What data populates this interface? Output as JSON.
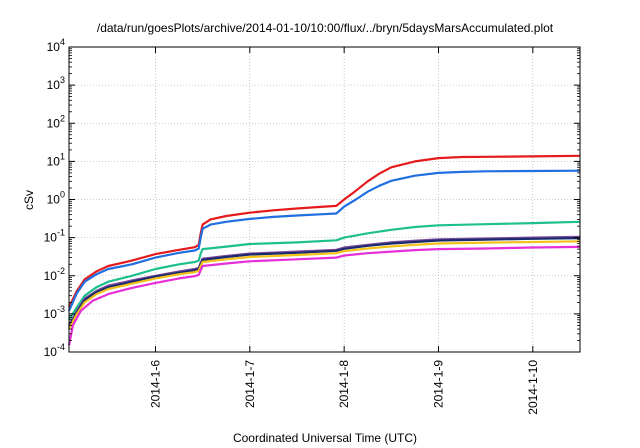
{
  "chart_data": {
    "type": "line",
    "title": "/data/run/goesPlots/archive/2014-01-10/10:00/flux/../bryn/5daysMarsAccumulated.plot",
    "xlabel": "Coordinated Universal Time (UTC)",
    "ylabel": "cSv",
    "x_scale": "time",
    "y_scale": "log",
    "xlim": [
      "2014-01-05T02:00",
      "2014-01-10T12:00"
    ],
    "ylim": [
      0.0001,
      10000
    ],
    "grid": true,
    "x_ticks": [
      {
        "value": "2014-01-06T00:00",
        "label": "2014-1-6"
      },
      {
        "value": "2014-01-07T00:00",
        "label": "2014-1-7"
      },
      {
        "value": "2014-01-08T00:00",
        "label": "2014-1-8"
      },
      {
        "value": "2014-01-09T00:00",
        "label": "2014-1-9"
      },
      {
        "value": "2014-01-10T00:00",
        "label": "2014-1-10"
      }
    ],
    "y_ticks": [
      {
        "value": 0.0001,
        "base": "10",
        "exp": "-4"
      },
      {
        "value": 0.001,
        "base": "10",
        "exp": "-3"
      },
      {
        "value": 0.01,
        "base": "10",
        "exp": "-2"
      },
      {
        "value": 0.1,
        "base": "10",
        "exp": "-1"
      },
      {
        "value": 1,
        "base": "10",
        "exp": "0"
      },
      {
        "value": 10,
        "base": "10",
        "exp": "1"
      },
      {
        "value": 100,
        "base": "10",
        "exp": "2"
      },
      {
        "value": 1000,
        "base": "10",
        "exp": "3"
      },
      {
        "value": 10000,
        "base": "10",
        "exp": "4"
      }
    ],
    "series": [
      {
        "color": "#e41a1c",
        "points": [
          [
            "2014-01-05T02:00",
            0.0015
          ],
          [
            "2014-01-05T04:00",
            0.004
          ],
          [
            "2014-01-05T06:00",
            0.008
          ],
          [
            "2014-01-05T09:00",
            0.013
          ],
          [
            "2014-01-05T12:00",
            0.018
          ],
          [
            "2014-01-05T18:00",
            0.025
          ],
          [
            "2014-01-06T00:00",
            0.037
          ],
          [
            "2014-01-06T06:00",
            0.048
          ],
          [
            "2014-01-06T10:00",
            0.056
          ],
          [
            "2014-01-06T11:00",
            0.065
          ],
          [
            "2014-01-06T11:30",
            0.13
          ],
          [
            "2014-01-06T12:00",
            0.22
          ],
          [
            "2014-01-06T14:00",
            0.3
          ],
          [
            "2014-01-06T18:00",
            0.37
          ],
          [
            "2014-01-07T00:00",
            0.45
          ],
          [
            "2014-01-07T06:00",
            0.52
          ],
          [
            "2014-01-07T12:00",
            0.58
          ],
          [
            "2014-01-07T18:00",
            0.64
          ],
          [
            "2014-01-07T22:00",
            0.68
          ],
          [
            "2014-01-08T00:00",
            1.0
          ],
          [
            "2014-01-08T03:00",
            1.7
          ],
          [
            "2014-01-08T06:00",
            3.0
          ],
          [
            "2014-01-08T09:00",
            4.8
          ],
          [
            "2014-01-08T12:00",
            7.0
          ],
          [
            "2014-01-08T18:00",
            10.0
          ],
          [
            "2014-01-09T00:00",
            12.2
          ],
          [
            "2014-01-09T06:00",
            13.0
          ],
          [
            "2014-01-09T12:00",
            13.2
          ],
          [
            "2014-01-10T00:00",
            13.5
          ],
          [
            "2014-01-10T12:00",
            14.0
          ]
        ]
      },
      {
        "color": "#1f6fe0",
        "points": [
          [
            "2014-01-05T02:00",
            0.0012
          ],
          [
            "2014-01-05T04:00",
            0.0035
          ],
          [
            "2014-01-05T06:00",
            0.007
          ],
          [
            "2014-01-05T09:00",
            0.011
          ],
          [
            "2014-01-05T12:00",
            0.015
          ],
          [
            "2014-01-05T18:00",
            0.02
          ],
          [
            "2014-01-06T00:00",
            0.03
          ],
          [
            "2014-01-06T06:00",
            0.04
          ],
          [
            "2014-01-06T10:00",
            0.046
          ],
          [
            "2014-01-06T11:00",
            0.052
          ],
          [
            "2014-01-06T11:30",
            0.1
          ],
          [
            "2014-01-06T12:00",
            0.17
          ],
          [
            "2014-01-06T14:00",
            0.22
          ],
          [
            "2014-01-06T18:00",
            0.26
          ],
          [
            "2014-01-07T00:00",
            0.31
          ],
          [
            "2014-01-07T06:00",
            0.35
          ],
          [
            "2014-01-07T12:00",
            0.38
          ],
          [
            "2014-01-07T18:00",
            0.41
          ],
          [
            "2014-01-07T22:00",
            0.43
          ],
          [
            "2014-01-08T00:00",
            0.65
          ],
          [
            "2014-01-08T03:00",
            1.0
          ],
          [
            "2014-01-08T06:00",
            1.6
          ],
          [
            "2014-01-08T09:00",
            2.3
          ],
          [
            "2014-01-08T12:00",
            3.1
          ],
          [
            "2014-01-08T18:00",
            4.2
          ],
          [
            "2014-01-09T00:00",
            5.0
          ],
          [
            "2014-01-09T06:00",
            5.3
          ],
          [
            "2014-01-09T12:00",
            5.5
          ],
          [
            "2014-01-10T00:00",
            5.6
          ],
          [
            "2014-01-10T12:00",
            5.7
          ]
        ]
      },
      {
        "color": "#1dbf8e",
        "points": [
          [
            "2014-01-05T02:00",
            0.0007
          ],
          [
            "2014-01-05T04:00",
            0.0015
          ],
          [
            "2014-01-05T06:00",
            0.003
          ],
          [
            "2014-01-05T09:00",
            0.005
          ],
          [
            "2014-01-05T12:00",
            0.007
          ],
          [
            "2014-01-05T18:00",
            0.01
          ],
          [
            "2014-01-06T00:00",
            0.015
          ],
          [
            "2014-01-06T06:00",
            0.02
          ],
          [
            "2014-01-06T10:00",
            0.023
          ],
          [
            "2014-01-06T11:00",
            0.025
          ],
          [
            "2014-01-06T11:30",
            0.038
          ],
          [
            "2014-01-06T12:00",
            0.05
          ],
          [
            "2014-01-06T18:00",
            0.058
          ],
          [
            "2014-01-07T00:00",
            0.068
          ],
          [
            "2014-01-07T12:00",
            0.075
          ],
          [
            "2014-01-07T22:00",
            0.085
          ],
          [
            "2014-01-08T00:00",
            0.1
          ],
          [
            "2014-01-08T06:00",
            0.13
          ],
          [
            "2014-01-08T12:00",
            0.16
          ],
          [
            "2014-01-08T18:00",
            0.19
          ],
          [
            "2014-01-09T00:00",
            0.21
          ],
          [
            "2014-01-09T12:00",
            0.225
          ],
          [
            "2014-01-10T00:00",
            0.24
          ],
          [
            "2014-01-10T12:00",
            0.26
          ]
        ]
      },
      {
        "color": "#7b4a9c",
        "points": [
          [
            "2014-01-05T02:00",
            0.0005
          ],
          [
            "2014-01-05T04:00",
            0.0012
          ],
          [
            "2014-01-05T06:00",
            0.0025
          ],
          [
            "2014-01-05T09:00",
            0.004
          ],
          [
            "2014-01-05T12:00",
            0.0055
          ],
          [
            "2014-01-05T18:00",
            0.0075
          ],
          [
            "2014-01-06T00:00",
            0.01
          ],
          [
            "2014-01-06T06:00",
            0.013
          ],
          [
            "2014-01-06T10:00",
            0.015
          ],
          [
            "2014-01-06T11:00",
            0.016
          ],
          [
            "2014-01-06T11:30",
            0.022
          ],
          [
            "2014-01-06T12:00",
            0.028
          ],
          [
            "2014-01-06T18:00",
            0.033
          ],
          [
            "2014-01-07T00:00",
            0.038
          ],
          [
            "2014-01-07T12:00",
            0.043
          ],
          [
            "2014-01-07T22:00",
            0.048
          ],
          [
            "2014-01-08T00:00",
            0.055
          ],
          [
            "2014-01-08T06:00",
            0.065
          ],
          [
            "2014-01-08T12:00",
            0.075
          ],
          [
            "2014-01-08T18:00",
            0.083
          ],
          [
            "2014-01-09T00:00",
            0.09
          ],
          [
            "2014-01-09T12:00",
            0.095
          ],
          [
            "2014-01-10T00:00",
            0.1
          ],
          [
            "2014-01-10T12:00",
            0.105
          ]
        ]
      },
      {
        "color": "#1a2a6e",
        "points": [
          [
            "2014-01-05T02:00",
            0.00045
          ],
          [
            "2014-01-05T04:00",
            0.0011
          ],
          [
            "2014-01-05T06:00",
            0.0023
          ],
          [
            "2014-01-05T09:00",
            0.0037
          ],
          [
            "2014-01-05T12:00",
            0.005
          ],
          [
            "2014-01-05T18:00",
            0.007
          ],
          [
            "2014-01-06T00:00",
            0.0095
          ],
          [
            "2014-01-06T06:00",
            0.012
          ],
          [
            "2014-01-06T10:00",
            0.014
          ],
          [
            "2014-01-06T11:00",
            0.015
          ],
          [
            "2014-01-06T11:30",
            0.02
          ],
          [
            "2014-01-06T12:00",
            0.026
          ],
          [
            "2014-01-06T18:00",
            0.031
          ],
          [
            "2014-01-07T00:00",
            0.036
          ],
          [
            "2014-01-07T12:00",
            0.04
          ],
          [
            "2014-01-07T22:00",
            0.045
          ],
          [
            "2014-01-08T00:00",
            0.051
          ],
          [
            "2014-01-08T06:00",
            0.061
          ],
          [
            "2014-01-08T12:00",
            0.07
          ],
          [
            "2014-01-08T18:00",
            0.077
          ],
          [
            "2014-01-09T00:00",
            0.084
          ],
          [
            "2014-01-09T12:00",
            0.089
          ],
          [
            "2014-01-10T00:00",
            0.093
          ],
          [
            "2014-01-10T12:00",
            0.097
          ]
        ]
      },
      {
        "color": "#f2c21b",
        "points": [
          [
            "2014-01-05T02:00",
            0.0004
          ],
          [
            "2014-01-05T04:00",
            0.001
          ],
          [
            "2014-01-05T06:00",
            0.002
          ],
          [
            "2014-01-05T09:00",
            0.0033
          ],
          [
            "2014-01-05T12:00",
            0.0045
          ],
          [
            "2014-01-05T18:00",
            0.0062
          ],
          [
            "2014-01-06T00:00",
            0.0085
          ],
          [
            "2014-01-06T06:00",
            0.011
          ],
          [
            "2014-01-06T10:00",
            0.0125
          ],
          [
            "2014-01-06T11:00",
            0.0135
          ],
          [
            "2014-01-06T11:30",
            0.018
          ],
          [
            "2014-01-06T12:00",
            0.023
          ],
          [
            "2014-01-06T18:00",
            0.027
          ],
          [
            "2014-01-07T00:00",
            0.031
          ],
          [
            "2014-01-07T12:00",
            0.035
          ],
          [
            "2014-01-07T22:00",
            0.039
          ],
          [
            "2014-01-08T00:00",
            0.044
          ],
          [
            "2014-01-08T06:00",
            0.052
          ],
          [
            "2014-01-08T12:00",
            0.059
          ],
          [
            "2014-01-08T18:00",
            0.065
          ],
          [
            "2014-01-09T00:00",
            0.07
          ],
          [
            "2014-01-09T12:00",
            0.074
          ],
          [
            "2014-01-10T00:00",
            0.077
          ],
          [
            "2014-01-10T12:00",
            0.08
          ]
        ]
      },
      {
        "color": "#e62fd8",
        "points": [
          [
            "2014-01-05T02:00",
            0.00015
          ],
          [
            "2014-01-05T03:00",
            0.0005
          ],
          [
            "2014-01-05T05:00",
            0.0012
          ],
          [
            "2014-01-05T08:00",
            0.0022
          ],
          [
            "2014-01-05T12:00",
            0.0033
          ],
          [
            "2014-01-05T18:00",
            0.0048
          ],
          [
            "2014-01-06T00:00",
            0.0065
          ],
          [
            "2014-01-06T06:00",
            0.0085
          ],
          [
            "2014-01-06T10:00",
            0.0098
          ],
          [
            "2014-01-06T11:00",
            0.0105
          ],
          [
            "2014-01-06T11:30",
            0.014
          ],
          [
            "2014-01-06T12:00",
            0.018
          ],
          [
            "2014-01-06T18:00",
            0.021
          ],
          [
            "2014-01-07T00:00",
            0.024
          ],
          [
            "2014-01-07T12:00",
            0.027
          ],
          [
            "2014-01-07T22:00",
            0.03
          ],
          [
            "2014-01-08T00:00",
            0.034
          ],
          [
            "2014-01-08T06:00",
            0.039
          ],
          [
            "2014-01-08T12:00",
            0.043
          ],
          [
            "2014-01-08T18:00",
            0.047
          ],
          [
            "2014-01-09T00:00",
            0.05
          ],
          [
            "2014-01-09T12:00",
            0.052
          ],
          [
            "2014-01-10T00:00",
            0.055
          ],
          [
            "2014-01-10T12:00",
            0.057
          ]
        ]
      }
    ]
  }
}
